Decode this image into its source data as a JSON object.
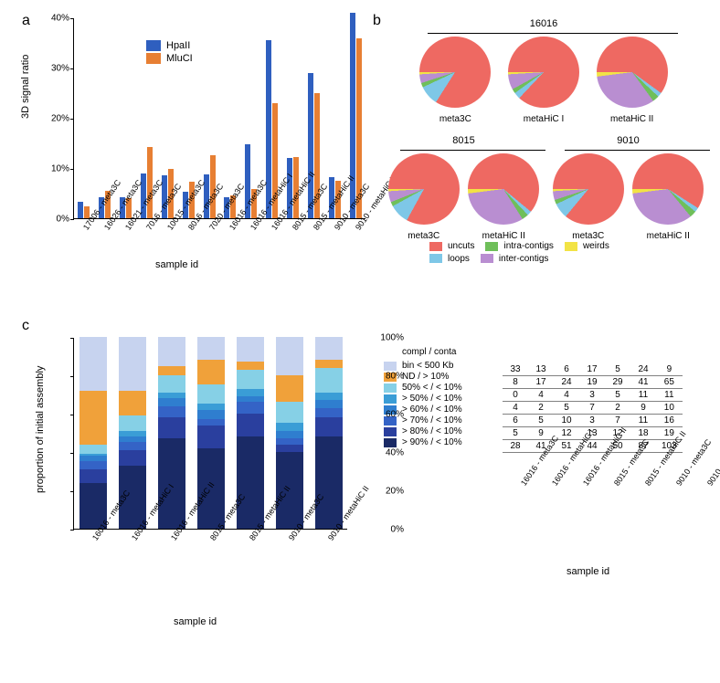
{
  "panels": {
    "a": "a",
    "b": "b",
    "c": "c"
  },
  "axis_titles": {
    "a_y": "3D signal ratio",
    "a_x": "sample id",
    "c_y": "proportion of initial assembly",
    "c_x": "sample id",
    "c_table_x": "sample id"
  },
  "panel_a": {
    "type": "bar",
    "series": [
      {
        "name": "HpaII",
        "color": "#2f5fbf"
      },
      {
        "name": "MluCI",
        "color": "#e77f33"
      }
    ],
    "ylim": [
      0,
      40
    ],
    "ytick_step": 10,
    "ytick_suffix": "%",
    "xlabel_fontsize": 9,
    "ylabel_fontsize": 10,
    "categories": [
      "17006 - meta3C",
      "16026 - meta3C",
      "16021 - meta3C",
      "7016 - meta3C",
      "10015 - meta3C",
      "8016 - meta3C",
      "7020 - meta3C",
      "16016 - meta3C",
      "16016 - metaHiC I",
      "16016 - metaHiC II",
      "8015 - meta3C",
      "8015 - metaHiC II",
      "9010 - meta3C",
      "9010 - metaHiC II"
    ],
    "values": {
      "HpaII": [
        3.2,
        4.2,
        4.1,
        8.9,
        8.6,
        5.2,
        8.8,
        4.2,
        14.8,
        35.5,
        12.0,
        29.0,
        8.2,
        41.0
      ],
      "MluCI": [
        2.3,
        5.4,
        4.0,
        14.2,
        9.8,
        7.2,
        12.5,
        4.6,
        5.8,
        23.0,
        12.2,
        25.0,
        7.4,
        35.8
      ]
    }
  },
  "panel_b": {
    "type": "pie_grid",
    "slice_legend": [
      {
        "name": "uncuts",
        "color": "#ee6962"
      },
      {
        "name": "loops",
        "color": "#7ec7e7"
      },
      {
        "name": "intra-contigs",
        "color": "#6fbf5a"
      },
      {
        "name": "inter-contigs",
        "color": "#b98ed1"
      },
      {
        "name": "weirds",
        "color": "#f2e345"
      }
    ],
    "groups": [
      {
        "title": "16016",
        "pies": [
          {
            "label": "meta3C",
            "slices": {
              "uncuts": 84,
              "loops": 9,
              "intra-contigs": 2,
              "inter-contigs": 4,
              "weirds": 1
            }
          },
          {
            "label": "metaHiC I",
            "slices": {
              "uncuts": 87,
              "loops": 3,
              "intra-contigs": 2,
              "inter-contigs": 7,
              "weirds": 1
            }
          },
          {
            "label": "metaHiC II",
            "slices": {
              "uncuts": 60,
              "loops": 2,
              "intra-contigs": 3,
              "inter-contigs": 33,
              "weirds": 2
            }
          }
        ]
      },
      {
        "title": "8015",
        "pies": [
          {
            "label": "meta3C",
            "slices": {
              "uncuts": 83,
              "loops": 9,
              "intra-contigs": 2,
              "inter-contigs": 5,
              "weirds": 1
            }
          },
          {
            "label": "metaHiC II",
            "slices": {
              "uncuts": 61,
              "loops": 2,
              "intra-contigs": 3,
              "inter-contigs": 32,
              "weirds": 2
            }
          }
        ]
      },
      {
        "title": "9010",
        "pies": [
          {
            "label": "meta3C",
            "slices": {
              "uncuts": 86,
              "loops": 7,
              "intra-contigs": 2,
              "inter-contigs": 4,
              "weirds": 1
            }
          },
          {
            "label": "metaHiC II",
            "slices": {
              "uncuts": 59,
              "loops": 2,
              "intra-contigs": 3,
              "inter-contigs": 34,
              "weirds": 2
            }
          }
        ]
      }
    ]
  },
  "panel_c": {
    "type": "stacked_bar",
    "ylim": [
      0,
      100
    ],
    "ytick_step": 20,
    "ytick_suffix": "%",
    "categories": [
      "16016 - meta3C",
      "16016 - metaHiC I",
      "16016 - metaHiC II",
      "8015 - meta3C",
      "8015 - metaHiC II",
      "9010 - meta3C",
      "9010 - metaHiC II"
    ],
    "legend_header": "compl / conta",
    "stack_order": [
      "gt90",
      "gt80",
      "gt70",
      "gt60",
      "gt50",
      "fifty",
      "nd",
      "bin500"
    ],
    "segments": {
      "bin500": {
        "label": "bin < 500 Kb",
        "color": "#c7d3ef"
      },
      "nd": {
        "label": "ND / > 10%",
        "color": "#f0a13a"
      },
      "fifty": {
        "label": "50% < / < 10%",
        "color": "#86d0e6"
      },
      "gt50": {
        "label": "> 50% / < 10%",
        "color": "#3a9dd6"
      },
      "gt60": {
        "label": "> 60% / < 10%",
        "color": "#2f7ecf"
      },
      "gt70": {
        "label": "> 70% / < 10%",
        "color": "#3463c6"
      },
      "gt80": {
        "label": "> 80% / < 10%",
        "color": "#2a3f9e"
      },
      "gt90": {
        "label": "> 90% / < 10%",
        "color": "#1a2a66"
      }
    },
    "values": {
      "16016 - meta3C": {
        "bin500": 28,
        "nd": 28,
        "fifty": 5,
        "gt50": 1,
        "gt60": 3,
        "gt70": 4,
        "gt80": 7,
        "gt90": 24
      },
      "16016 - metaHiC I": {
        "bin500": 28,
        "nd": 13,
        "fifty": 8,
        "gt50": 3,
        "gt60": 3,
        "gt70": 4,
        "gt80": 8,
        "gt90": 33
      },
      "16016 - metaHiC II": {
        "bin500": 15,
        "nd": 5,
        "fifty": 9,
        "gt50": 3,
        "gt60": 4,
        "gt70": 6,
        "gt80": 11,
        "gt90": 47
      },
      "8015 - meta3C": {
        "bin500": 12,
        "nd": 13,
        "fifty": 10,
        "gt50": 3,
        "gt60": 5,
        "gt70": 3,
        "gt80": 12,
        "gt90": 42
      },
      "8015 - metaHiC II": {
        "bin500": 13,
        "nd": 4,
        "fifty": 10,
        "gt50": 4,
        "gt60": 3,
        "gt70": 6,
        "gt80": 12,
        "gt90": 48
      },
      "9010 - meta3C": {
        "bin500": 20,
        "nd": 14,
        "fifty": 11,
        "gt50": 4,
        "gt60": 4,
        "gt70": 3,
        "gt80": 4,
        "gt90": 40
      },
      "9010 - metaHiC II": {
        "bin500": 12,
        "nd": 4,
        "fifty": 13,
        "gt50": 4,
        "gt60": 4,
        "gt70": 5,
        "gt80": 10,
        "gt90": 48
      }
    },
    "table": {
      "rows": [
        [
          33,
          13,
          6,
          17,
          5,
          24,
          9
        ],
        [
          8,
          17,
          24,
          19,
          29,
          41,
          65
        ],
        [
          0,
          4,
          4,
          3,
          5,
          11,
          11
        ],
        [
          4,
          2,
          5,
          7,
          2,
          9,
          10
        ],
        [
          6,
          5,
          10,
          3,
          7,
          11,
          16
        ],
        [
          5,
          9,
          12,
          13,
          12,
          18,
          19
        ],
        [
          28,
          41,
          51,
          44,
          50,
          87,
          103
        ]
      ]
    }
  }
}
